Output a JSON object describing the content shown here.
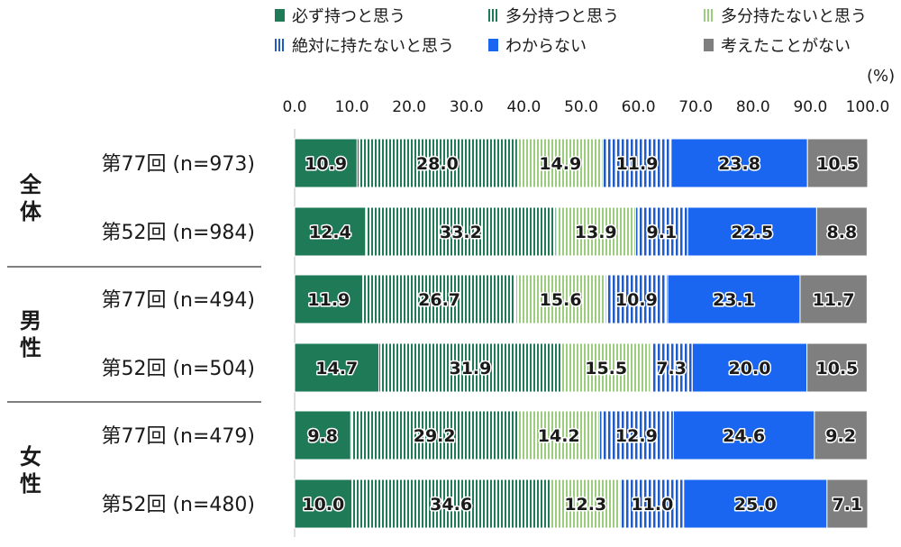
{
  "chart_data": {
    "type": "bar",
    "orientation": "horizontal-stacked",
    "unit": "(%)",
    "xlim": [
      0,
      100
    ],
    "x_ticks": [
      "0.0",
      "10.0",
      "20.0",
      "30.0",
      "40.0",
      "50.0",
      "60.0",
      "70.0",
      "80.0",
      "90.0",
      "100.0"
    ],
    "legend_position": "top",
    "series": [
      {
        "name": "必ず持つと思う",
        "color": "#1e7a57",
        "pattern": "solid"
      },
      {
        "name": "多分持つと思う",
        "color": "#1e7a57",
        "pattern": "vertical-stripes"
      },
      {
        "name": "多分持たないと思う",
        "color": "#9ccc7e",
        "pattern": "vertical-stripes"
      },
      {
        "name": "絶対に持たないと思う",
        "color": "#1f5cc8",
        "pattern": "vertical-stripes"
      },
      {
        "name": "わからない",
        "color": "#1a66f0",
        "pattern": "solid"
      },
      {
        "name": "考えたことがない",
        "color": "#7f7f7f",
        "pattern": "solid"
      }
    ],
    "groups": [
      {
        "label": "全体",
        "rows": [
          {
            "label": "第77回 (n=973)",
            "values": [
              10.9,
              28.0,
              14.9,
              11.9,
              23.8,
              10.5
            ]
          },
          {
            "label": "第52回 (n=984)",
            "values": [
              12.4,
              33.2,
              13.9,
              9.1,
              22.5,
              8.8
            ]
          }
        ]
      },
      {
        "label": "男性",
        "rows": [
          {
            "label": "第77回 (n=494)",
            "values": [
              11.9,
              26.7,
              15.6,
              10.9,
              23.1,
              11.7
            ]
          },
          {
            "label": "第52回 (n=504)",
            "values": [
              14.7,
              31.9,
              15.5,
              7.3,
              20.0,
              10.5
            ]
          }
        ]
      },
      {
        "label": "女性",
        "rows": [
          {
            "label": "第77回 (n=479)",
            "values": [
              9.8,
              29.2,
              14.2,
              12.9,
              24.6,
              9.2
            ]
          },
          {
            "label": "第52回 (n=480)",
            "values": [
              10.0,
              34.6,
              12.3,
              11.0,
              25.0,
              7.1
            ]
          }
        ]
      }
    ]
  }
}
